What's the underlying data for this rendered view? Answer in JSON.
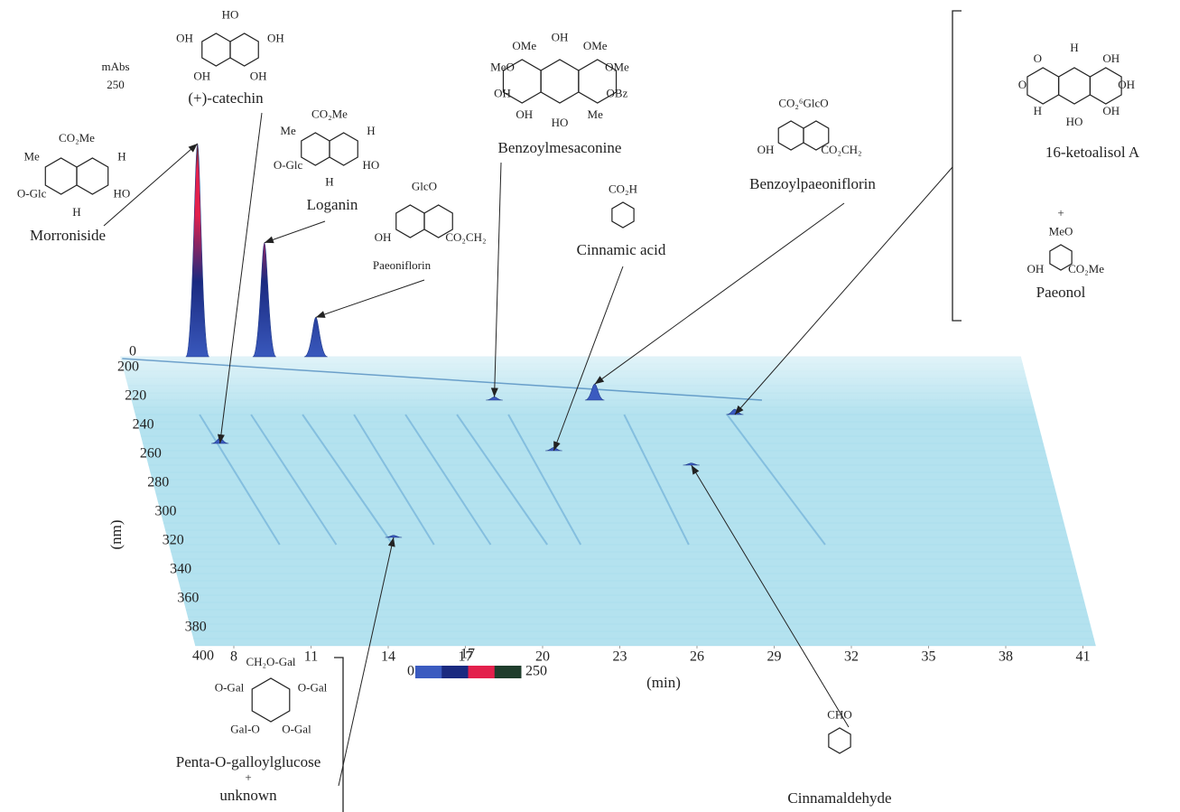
{
  "chart_data": {
    "type": "waterfall3d",
    "xlabel": "(min)",
    "ylabel": "(nm)",
    "zlabel": "mAbs",
    "xlim": [
      8,
      41
    ],
    "xticks": [
      8,
      11,
      14,
      17,
      20,
      23,
      26,
      29,
      32,
      35,
      38,
      41
    ],
    "ylim": [
      200,
      400
    ],
    "yticks": [
      200,
      220,
      240,
      260,
      280,
      300,
      320,
      340,
      360,
      380,
      400
    ],
    "zlim": [
      0,
      250
    ],
    "zticks": [
      0,
      250
    ],
    "surface_color": "#b4e2ef",
    "colorbar": {
      "ticks": [
        0,
        17,
        250
      ],
      "colors": [
        "#3b5bc0",
        "#1a2a80",
        "#e3204c",
        "#1f3d2c"
      ]
    },
    "compounds": [
      {
        "name": "Morroniside",
        "groups": [
          "CO₂Me",
          "H",
          "HO",
          "H",
          "O-Glc",
          "Me"
        ],
        "time": 9.5,
        "wavelength": 200,
        "height": 200
      },
      {
        "name": "(+)-catechin",
        "groups": [
          "HO",
          "OH",
          "OH",
          "OH",
          "OH"
        ],
        "time": 9.5,
        "wavelength": 260,
        "height": 5
      },
      {
        "name": "Loganin",
        "groups": [
          "CO₂Me",
          "H",
          "HO",
          "H",
          "O-Glc",
          "Me"
        ],
        "time": 12.1,
        "wavelength": 200,
        "height": 107
      },
      {
        "name": "Paeoniflorin",
        "groups": [
          "GlcO",
          "CO₂CH₂",
          "OH"
        ],
        "time": 14.1,
        "wavelength": 200,
        "height": 37
      },
      {
        "name": "Benzoylmesaconine",
        "groups": [
          "OH",
          "OMe",
          "OMe",
          "OBz",
          "Me",
          "HO",
          "OH",
          "OH",
          "MeO",
          "OMe"
        ],
        "time": 20.6,
        "wavelength": 230,
        "height": 3
      },
      {
        "name": "Cinnamic acid",
        "groups": [
          "CO₂H"
        ],
        "time": 22.4,
        "wavelength": 265,
        "height": 3
      },
      {
        "name": "Benzoylpaeoniflorin",
        "groups": [
          "CO₂⁶GlcO",
          "CO₂CH₂",
          "OH"
        ],
        "time": 24.5,
        "wavelength": 230,
        "height": 15
      },
      {
        "name": "16-ketoalisol A",
        "groups": [
          "H",
          "OH",
          "OH",
          "OH",
          "HO",
          "H",
          "O",
          "O"
        ],
        "time": 29.8,
        "wavelength": 240,
        "height": 5,
        "plus": "+",
        "name2": "Paeonol",
        "groups2": [
          "MeO",
          "CO₂Me",
          "OH"
        ]
      },
      {
        "name": "Penta-O-galloylglucose",
        "groups": [
          "CH₂O-Gal",
          "O-Gal",
          "O-Gal",
          "Gal-O",
          "O-Gal"
        ],
        "time": 15.3,
        "wavelength": 325,
        "height": 2,
        "plus": "+",
        "name2": "unknown"
      },
      {
        "name": "Cinnamaldehyde",
        "groups": [
          "CHO"
        ],
        "time": 27.6,
        "wavelength": 275,
        "height": 2
      }
    ]
  }
}
